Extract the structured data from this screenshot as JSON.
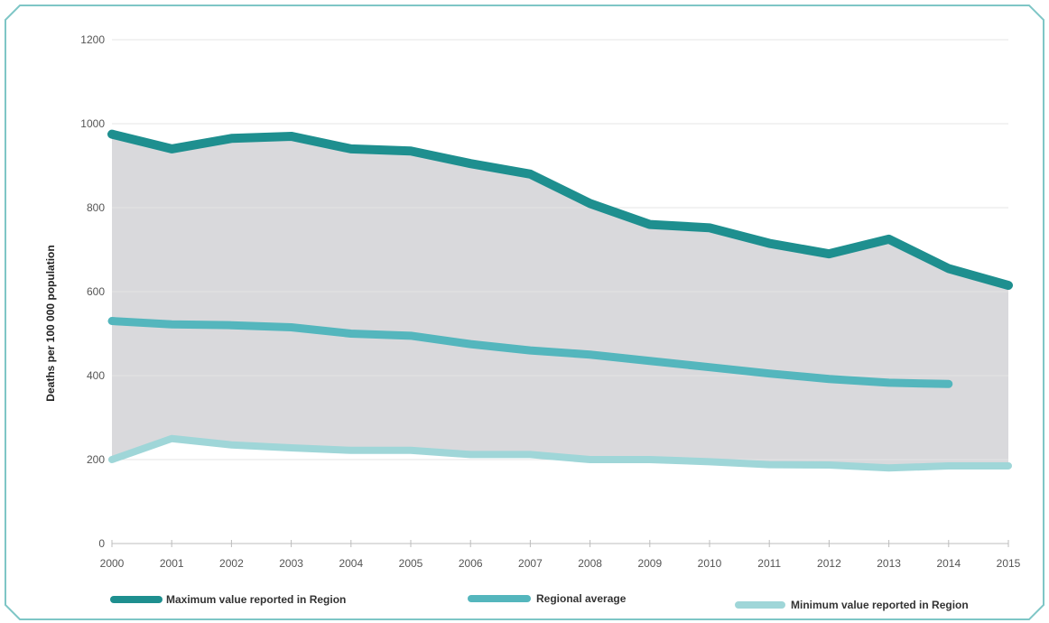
{
  "chart_data": {
    "type": "line",
    "title": "",
    "xlabel": "",
    "ylabel": "Deaths per 100 000 population",
    "x": [
      2000,
      2001,
      2002,
      2003,
      2004,
      2005,
      2006,
      2007,
      2008,
      2009,
      2010,
      2011,
      2012,
      2013,
      2014,
      2015
    ],
    "x_tick_labels": [
      "2000",
      "2001",
      "2002",
      "2003",
      "2004",
      "2005",
      "2006",
      "2007",
      "2008",
      "2009",
      "2010",
      "2011",
      "2012",
      "2013",
      "2014",
      "2015"
    ],
    "ylim": [
      0,
      1200
    ],
    "y_ticks": [
      0,
      200,
      400,
      600,
      800,
      1000,
      1200
    ],
    "y_tick_labels": [
      "0",
      "200",
      "400",
      "600",
      "800",
      "1000",
      "1200"
    ],
    "grid": true,
    "shaded_band": "between maximum and minimum",
    "legend_position": "bottom",
    "series": [
      {
        "name": "Maximum value reported in Region",
        "color": "#1e8f8f",
        "values": [
          975,
          940,
          965,
          970,
          940,
          935,
          905,
          880,
          810,
          760,
          752,
          715,
          690,
          725,
          655,
          615
        ]
      },
      {
        "name": "Regional average",
        "color": "#54b6bd",
        "values": [
          530,
          522,
          520,
          515,
          500,
          495,
          475,
          460,
          450,
          435,
          420,
          405,
          392,
          383,
          380,
          null
        ]
      },
      {
        "name": "Minimum value reported in Region",
        "color": "#9fd6d8",
        "values": [
          200,
          250,
          235,
          228,
          222,
          222,
          212,
          212,
          200,
          200,
          195,
          188,
          187,
          180,
          185,
          185
        ]
      }
    ],
    "band_color": "#d9d9dc",
    "frame_color": "#7ec6c6"
  }
}
